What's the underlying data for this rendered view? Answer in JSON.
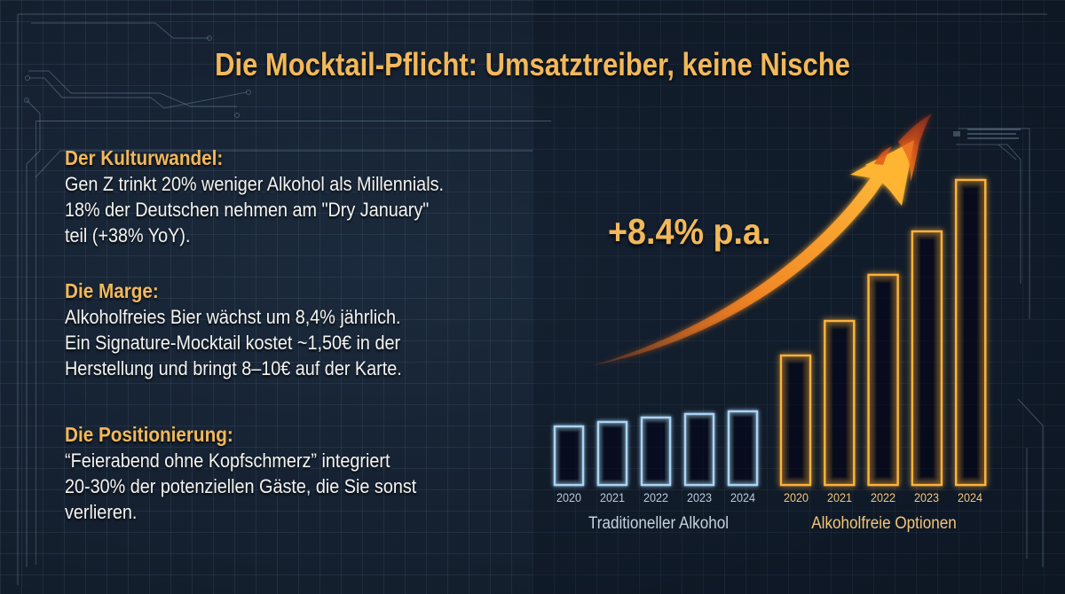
{
  "title": "Die Mocktail-Pflicht: Umsatztreiber, keine Nische",
  "sections": [
    {
      "heading": "Der Kulturwandel:",
      "lines": [
        "Gen Z trinkt 20% weniger Alkohol als Millennials.",
        "18% der Deutschen nehmen am \"Dry January\"",
        "teil (+38% YoY)."
      ]
    },
    {
      "heading": "Die Marge:",
      "lines": [
        "Alkoholfreies Bier wächst um 8,4% jährlich.",
        "Ein Signature-Mocktail kostet ~1,50€ in der",
        "Herstellung und bringt 8–10€ auf der Karte."
      ]
    },
    {
      "heading": "Die Positionierung:",
      "lines": [
        "“Feierabend ohne Kopfschmerz” integriert",
        "20-30% der potenziellen Gäste, die Sie sonst",
        "verlieren."
      ]
    }
  ],
  "colors": {
    "accent_gold": "#f2b85a",
    "traditional_blue": "#a9d4f5",
    "alcohol_free_orange": "#ffb23a",
    "background": "#15202e"
  },
  "chart_data": {
    "type": "bar",
    "title": "",
    "annotation": "+8.4% p.a.",
    "annotation_icon": "rising-arrow-icon",
    "categories": [
      "2020",
      "2021",
      "2022",
      "2023",
      "2024"
    ],
    "series": [
      {
        "name": "Traditioneller Alkohol",
        "color": "#a9d4f5",
        "values": [
          66,
          71,
          76,
          80,
          83
        ]
      },
      {
        "name": "Alkoholfreie Optionen",
        "color": "#ffb23a",
        "values": [
          146,
          185,
          237,
          286,
          344
        ]
      }
    ],
    "value_note": "Relative bar heights in px above baseline (no y-axis shown)",
    "xlabel": "",
    "ylabel": "",
    "ylim": [
      0,
      360
    ],
    "grid": true,
    "legend_position": "below each group"
  }
}
